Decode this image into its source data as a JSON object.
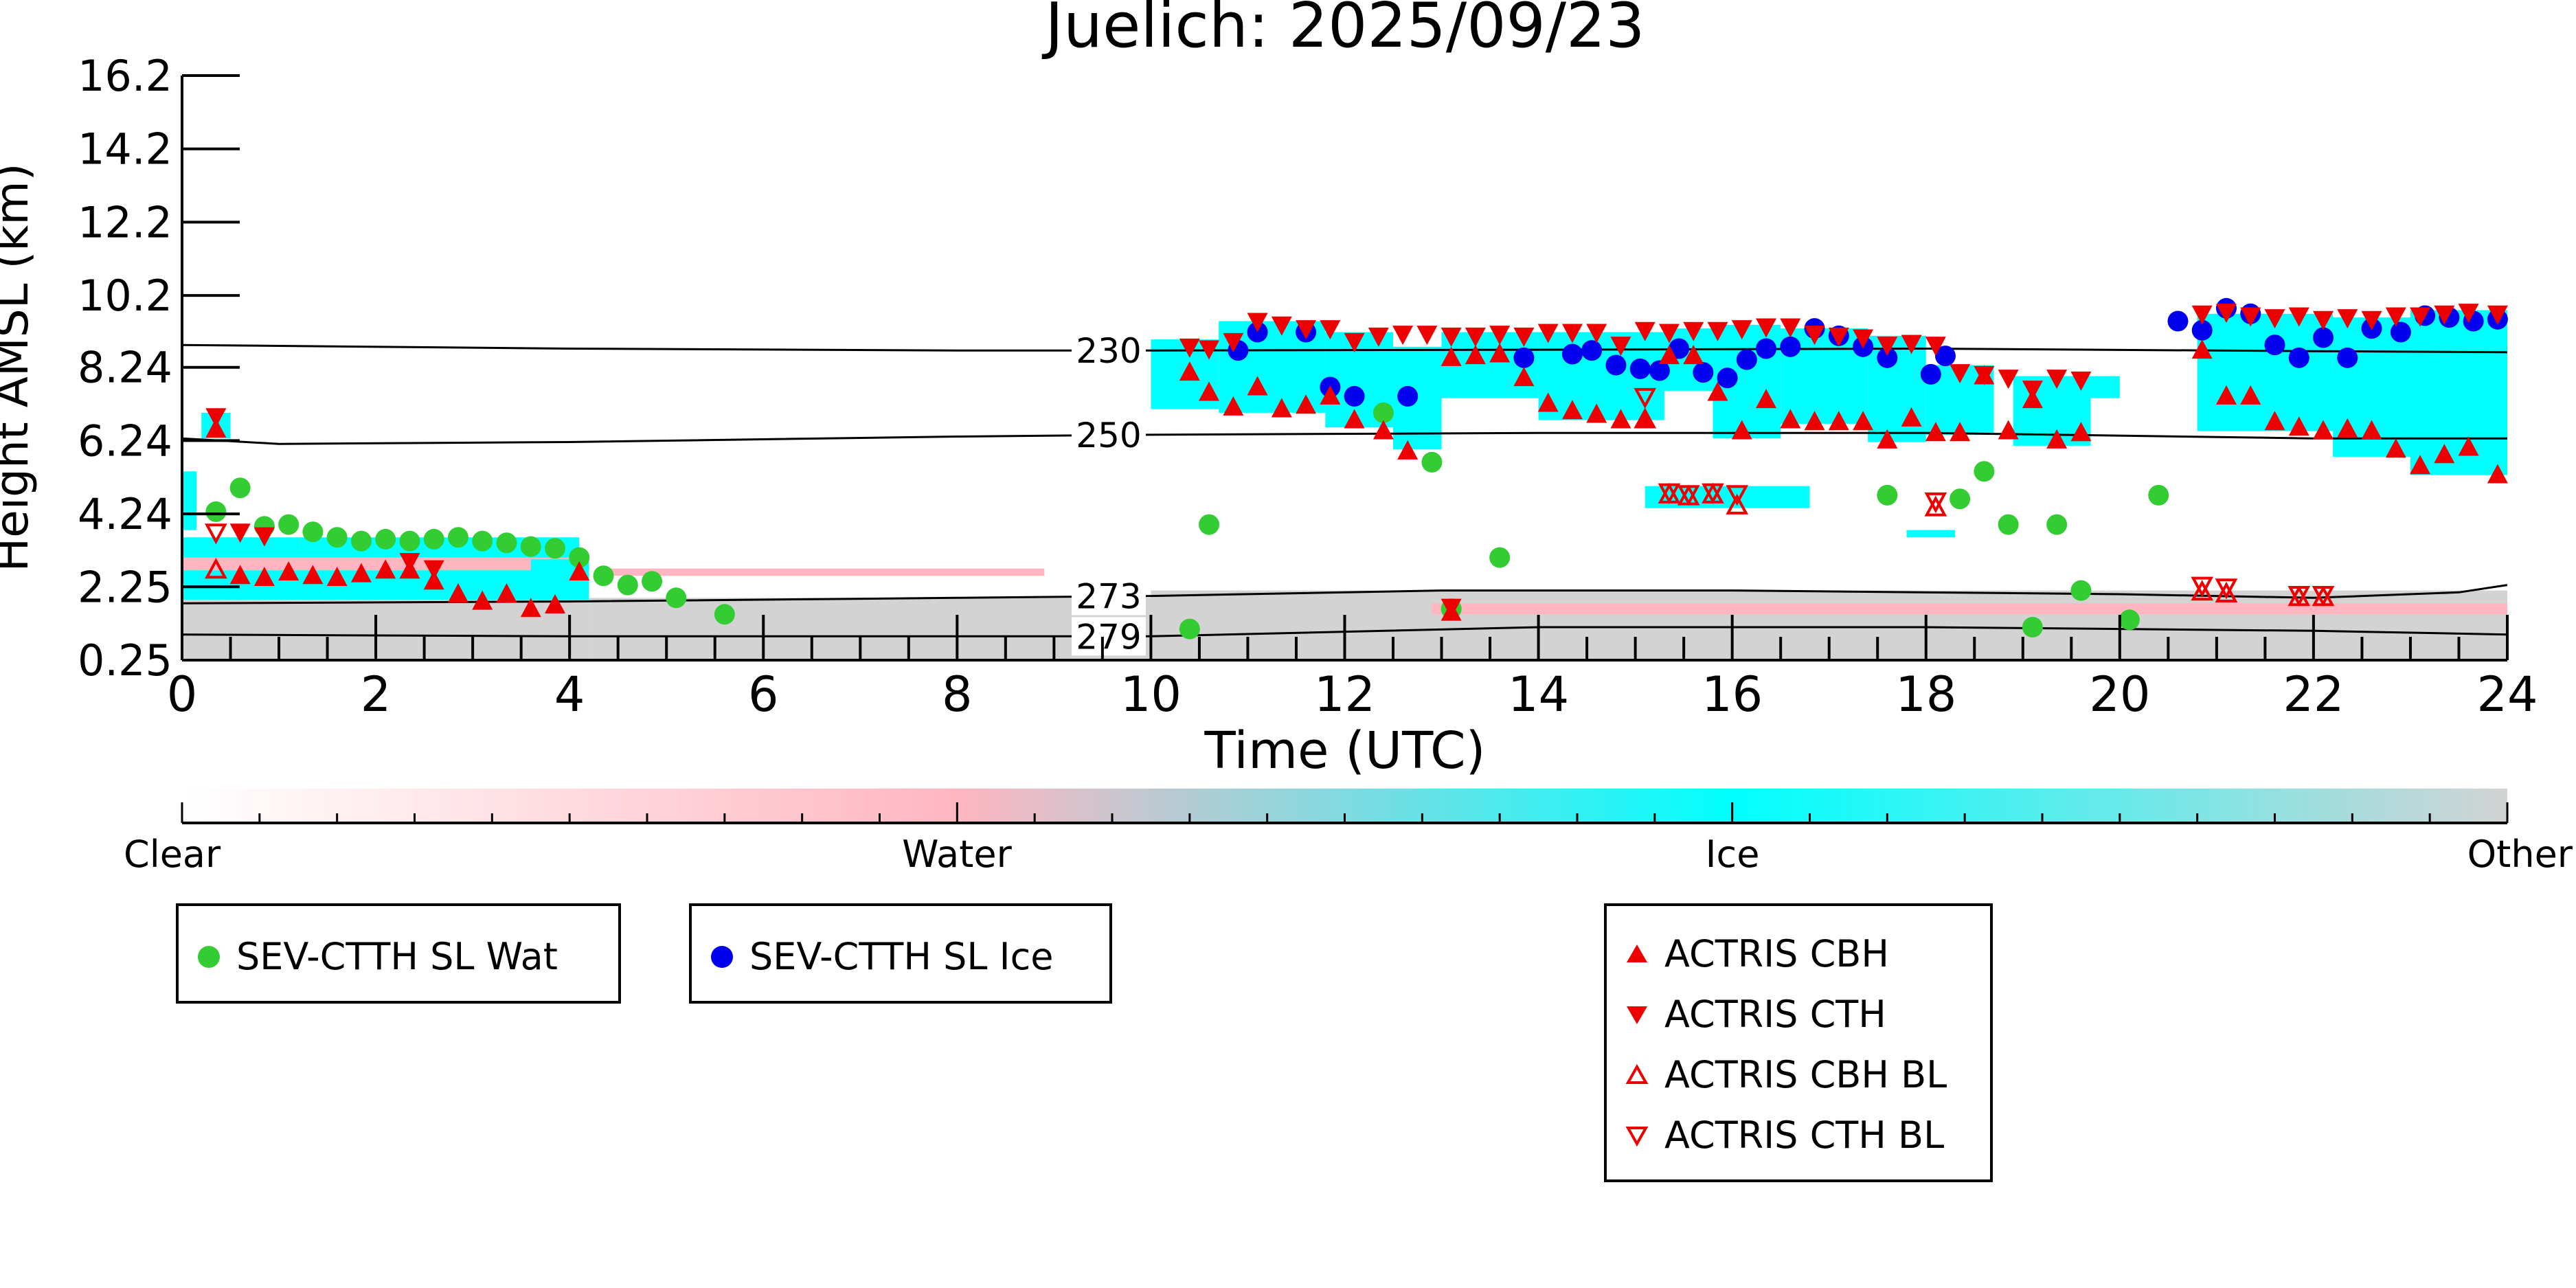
{
  "chart_data": {
    "type": "scatter",
    "title": "Juelich: 2025/09/23",
    "xlabel": "Time (UTC)",
    "ylabel": "Height AMSL (km)",
    "xlim": [
      0,
      24
    ],
    "ylim": [
      0.25,
      16.2
    ],
    "x_ticks": [
      0,
      2,
      4,
      6,
      8,
      10,
      12,
      14,
      16,
      18,
      20,
      22,
      24
    ],
    "y_ticks": [
      0.25,
      2.25,
      4.24,
      6.24,
      8.24,
      10.2,
      12.2,
      14.2,
      16.2
    ],
    "y_tick_labels": [
      "0.25",
      "2.25",
      "4.24",
      "6.24",
      "8.24",
      "10.2",
      "12.2",
      "14.2",
      "16.2"
    ],
    "background": "Cloudnet target classification (Clear, Water, Ice, Other)",
    "colorbar": {
      "labels": [
        "Clear",
        "Water",
        "Ice",
        "Other"
      ],
      "colors": [
        "#ffffff",
        "#ffb6c1",
        "#00ffff",
        "#d3d3d3"
      ]
    },
    "isotherms": [
      {
        "label": "230",
        "points": [
          [
            0,
            8.85
          ],
          [
            4,
            8.75
          ],
          [
            8,
            8.7
          ],
          [
            10,
            8.7
          ],
          [
            14,
            8.72
          ],
          [
            18,
            8.75
          ],
          [
            22,
            8.68
          ],
          [
            24,
            8.65
          ]
        ]
      },
      {
        "label": "250",
        "points": [
          [
            0,
            6.3
          ],
          [
            1,
            6.15
          ],
          [
            4,
            6.2
          ],
          [
            8,
            6.35
          ],
          [
            10,
            6.4
          ],
          [
            14,
            6.45
          ],
          [
            18,
            6.45
          ],
          [
            22,
            6.3
          ],
          [
            24,
            6.3
          ]
        ]
      },
      {
        "label": "273",
        "points": [
          [
            0,
            1.8
          ],
          [
            4,
            1.85
          ],
          [
            8,
            1.95
          ],
          [
            10,
            2.0
          ],
          [
            13,
            2.15
          ],
          [
            16,
            2.15
          ],
          [
            20,
            2.05
          ],
          [
            22,
            1.95
          ],
          [
            23.5,
            2.1
          ],
          [
            24,
            2.3
          ]
        ]
      },
      {
        "label": "279",
        "points": [
          [
            0,
            0.95
          ],
          [
            4,
            0.9
          ],
          [
            8,
            0.9
          ],
          [
            10,
            0.9
          ],
          [
            14,
            1.15
          ],
          [
            18,
            1.15
          ],
          [
            22,
            1.05
          ],
          [
            24,
            0.95
          ]
        ]
      }
    ],
    "series": [
      {
        "name": "SEV-CTTH SL Wat",
        "marker": "circle",
        "color": "#33cc33",
        "points": [
          [
            0.35,
            4.3
          ],
          [
            0.6,
            4.95
          ],
          [
            0.85,
            3.9
          ],
          [
            1.1,
            3.95
          ],
          [
            1.35,
            3.75
          ],
          [
            1.6,
            3.6
          ],
          [
            1.85,
            3.5
          ],
          [
            2.1,
            3.55
          ],
          [
            2.35,
            3.5
          ],
          [
            2.6,
            3.55
          ],
          [
            2.85,
            3.6
          ],
          [
            3.1,
            3.5
          ],
          [
            3.35,
            3.45
          ],
          [
            3.6,
            3.35
          ],
          [
            3.85,
            3.3
          ],
          [
            4.1,
            3.05
          ],
          [
            4.35,
            2.55
          ],
          [
            4.6,
            2.3
          ],
          [
            4.85,
            2.4
          ],
          [
            5.1,
            1.95
          ],
          [
            5.6,
            1.5
          ],
          [
            10.4,
            1.1
          ],
          [
            10.6,
            3.95
          ],
          [
            12.4,
            7.0
          ],
          [
            12.9,
            5.65
          ],
          [
            13.1,
            1.65
          ],
          [
            13.6,
            3.05
          ],
          [
            17.6,
            4.75
          ],
          [
            18.35,
            4.65
          ],
          [
            18.6,
            5.4
          ],
          [
            18.85,
            3.95
          ],
          [
            19.1,
            1.15
          ],
          [
            19.35,
            3.95
          ],
          [
            19.6,
            2.15
          ],
          [
            20.1,
            1.35
          ],
          [
            20.4,
            4.75
          ]
        ]
      },
      {
        "name": "SEV-CTTH SL Ice",
        "marker": "circle",
        "color": "#0000ee",
        "points": [
          [
            10.9,
            8.7
          ],
          [
            11.1,
            9.2
          ],
          [
            11.6,
            9.2
          ],
          [
            11.85,
            7.7
          ],
          [
            12.1,
            7.45
          ],
          [
            12.65,
            7.45
          ],
          [
            13.85,
            8.5
          ],
          [
            14.35,
            8.6
          ],
          [
            14.55,
            8.7
          ],
          [
            14.8,
            8.3
          ],
          [
            15.05,
            8.2
          ],
          [
            15.25,
            8.15
          ],
          [
            15.45,
            8.75
          ],
          [
            15.7,
            8.1
          ],
          [
            15.95,
            7.95
          ],
          [
            16.15,
            8.45
          ],
          [
            16.35,
            8.75
          ],
          [
            16.6,
            8.8
          ],
          [
            16.85,
            9.3
          ],
          [
            17.1,
            9.1
          ],
          [
            17.35,
            8.8
          ],
          [
            17.6,
            8.5
          ],
          [
            18.05,
            8.05
          ],
          [
            18.2,
            8.55
          ],
          [
            20.6,
            9.5
          ],
          [
            20.85,
            9.25
          ],
          [
            21.1,
            9.85
          ],
          [
            21.35,
            9.7
          ],
          [
            21.6,
            8.85
          ],
          [
            21.85,
            8.5
          ],
          [
            22.1,
            9.05
          ],
          [
            22.35,
            8.5
          ],
          [
            22.6,
            9.3
          ],
          [
            22.9,
            9.2
          ],
          [
            23.15,
            9.65
          ],
          [
            23.4,
            9.6
          ],
          [
            23.65,
            9.5
          ],
          [
            23.9,
            9.55
          ]
        ]
      },
      {
        "name": "ACTRIS CBH",
        "marker": "triangle-up",
        "color": "#ee0000",
        "points": [
          [
            0.35,
            6.55
          ],
          [
            0.6,
            2.55
          ],
          [
            0.85,
            2.5
          ],
          [
            1.1,
            2.65
          ],
          [
            1.35,
            2.55
          ],
          [
            1.6,
            2.5
          ],
          [
            1.85,
            2.6
          ],
          [
            2.1,
            2.7
          ],
          [
            2.35,
            2.7
          ],
          [
            2.6,
            2.4
          ],
          [
            2.85,
            2.05
          ],
          [
            3.1,
            1.85
          ],
          [
            3.35,
            2.05
          ],
          [
            3.6,
            1.65
          ],
          [
            3.85,
            1.75
          ],
          [
            4.1,
            2.65
          ],
          [
            10.4,
            8.1
          ],
          [
            10.6,
            7.55
          ],
          [
            10.85,
            7.15
          ],
          [
            11.1,
            7.7
          ],
          [
            11.35,
            7.1
          ],
          [
            11.6,
            7.2
          ],
          [
            11.85,
            7.45
          ],
          [
            12.1,
            6.8
          ],
          [
            12.4,
            6.5
          ],
          [
            12.65,
            5.95
          ],
          [
            13.1,
            8.5
          ],
          [
            13.35,
            8.55
          ],
          [
            13.6,
            8.6
          ],
          [
            13.85,
            7.95
          ],
          [
            14.1,
            7.25
          ],
          [
            14.35,
            7.05
          ],
          [
            14.6,
            6.95
          ],
          [
            14.85,
            6.8
          ],
          [
            15.1,
            6.8
          ],
          [
            15.35,
            8.55
          ],
          [
            15.6,
            8.55
          ],
          [
            15.85,
            7.55
          ],
          [
            16.1,
            6.5
          ],
          [
            16.35,
            7.35
          ],
          [
            16.6,
            6.8
          ],
          [
            16.85,
            6.75
          ],
          [
            17.1,
            6.75
          ],
          [
            17.35,
            6.75
          ],
          [
            17.6,
            6.25
          ],
          [
            17.85,
            6.85
          ],
          [
            18.1,
            6.45
          ],
          [
            18.35,
            6.45
          ],
          [
            18.6,
            8.0
          ],
          [
            18.85,
            6.5
          ],
          [
            19.1,
            7.35
          ],
          [
            19.35,
            6.25
          ],
          [
            19.6,
            6.45
          ],
          [
            20.85,
            8.7
          ],
          [
            21.1,
            7.45
          ],
          [
            21.35,
            7.45
          ],
          [
            21.6,
            6.75
          ],
          [
            21.85,
            6.6
          ],
          [
            22.1,
            6.5
          ],
          [
            22.35,
            6.55
          ],
          [
            22.6,
            6.5
          ],
          [
            22.85,
            6.0
          ],
          [
            23.1,
            5.55
          ],
          [
            23.35,
            5.85
          ],
          [
            23.6,
            6.05
          ],
          [
            23.9,
            5.3
          ],
          [
            13.1,
            1.55
          ]
        ]
      },
      {
        "name": "ACTRIS CTH",
        "marker": "triangle-down",
        "color": "#ee0000",
        "points": [
          [
            0.35,
            6.9
          ],
          [
            0.6,
            3.75
          ],
          [
            0.85,
            3.65
          ],
          [
            2.35,
            2.95
          ],
          [
            2.6,
            2.75
          ],
          [
            10.4,
            8.8
          ],
          [
            10.6,
            8.75
          ],
          [
            10.85,
            8.95
          ],
          [
            11.1,
            9.5
          ],
          [
            11.35,
            9.4
          ],
          [
            11.6,
            9.3
          ],
          [
            11.85,
            9.3
          ],
          [
            12.1,
            8.95
          ],
          [
            12.35,
            9.1
          ],
          [
            12.6,
            9.15
          ],
          [
            12.85,
            9.15
          ],
          [
            13.1,
            9.1
          ],
          [
            13.35,
            9.1
          ],
          [
            13.6,
            9.15
          ],
          [
            13.85,
            9.1
          ],
          [
            14.1,
            9.2
          ],
          [
            14.35,
            9.2
          ],
          [
            14.6,
            9.2
          ],
          [
            14.85,
            8.85
          ],
          [
            15.1,
            9.25
          ],
          [
            15.35,
            9.2
          ],
          [
            15.6,
            9.25
          ],
          [
            15.85,
            9.25
          ],
          [
            16.1,
            9.3
          ],
          [
            16.35,
            9.35
          ],
          [
            16.6,
            9.35
          ],
          [
            16.85,
            9.15
          ],
          [
            17.1,
            9.1
          ],
          [
            17.35,
            9.05
          ],
          [
            17.6,
            8.85
          ],
          [
            17.85,
            8.9
          ],
          [
            18.1,
            8.85
          ],
          [
            18.35,
            8.1
          ],
          [
            18.6,
            8.05
          ],
          [
            18.85,
            7.95
          ],
          [
            19.1,
            7.65
          ],
          [
            19.35,
            7.95
          ],
          [
            19.6,
            7.9
          ],
          [
            20.85,
            9.7
          ],
          [
            21.1,
            9.75
          ],
          [
            21.35,
            9.65
          ],
          [
            21.6,
            9.6
          ],
          [
            21.85,
            9.65
          ],
          [
            22.1,
            9.55
          ],
          [
            22.35,
            9.6
          ],
          [
            22.6,
            9.55
          ],
          [
            22.85,
            9.65
          ],
          [
            23.1,
            9.65
          ],
          [
            23.35,
            9.7
          ],
          [
            23.6,
            9.75
          ],
          [
            23.9,
            9.7
          ],
          [
            13.1,
            1.7
          ]
        ]
      },
      {
        "name": "ACTRIS CBH BL",
        "marker": "triangle-up-open",
        "color": "#ee0000",
        "points": [
          [
            0.35,
            2.7
          ],
          [
            15.1,
            6.8
          ],
          [
            15.35,
            4.75
          ],
          [
            15.55,
            4.7
          ],
          [
            15.8,
            4.75
          ],
          [
            16.05,
            4.45
          ],
          [
            18.1,
            4.4
          ],
          [
            20.85,
            2.1
          ],
          [
            21.1,
            2.05
          ],
          [
            21.85,
            1.95
          ],
          [
            22.1,
            1.95
          ]
        ]
      },
      {
        "name": "ACTRIS CTH BL",
        "marker": "triangle-down-open",
        "color": "#ee0000",
        "points": [
          [
            0.35,
            3.75
          ],
          [
            15.1,
            7.45
          ],
          [
            15.35,
            4.85
          ],
          [
            15.55,
            4.8
          ],
          [
            15.8,
            4.85
          ],
          [
            16.05,
            4.8
          ],
          [
            18.1,
            4.6
          ],
          [
            20.85,
            2.3
          ],
          [
            21.1,
            2.25
          ],
          [
            21.85,
            2.05
          ],
          [
            22.1,
            2.05
          ]
        ]
      }
    ],
    "legend_left": [
      "SEV-CTTH SL Wat",
      "SEV-CTTH SL Ice"
    ],
    "legend_right": [
      "ACTRIS CBH",
      "ACTRIS CTH",
      "ACTRIS CBH BL",
      "ACTRIS CTH BL"
    ]
  }
}
